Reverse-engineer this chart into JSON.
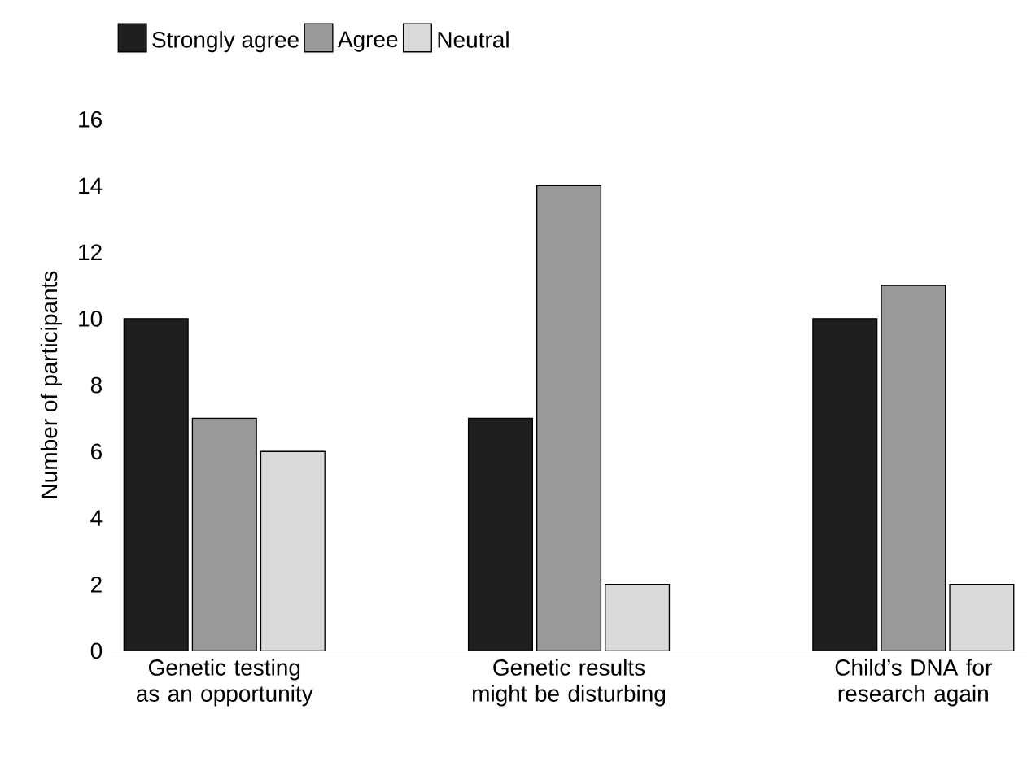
{
  "chart_data": {
    "type": "bar",
    "ylabel": "Number of participants",
    "categories": [
      "Genetic testing as an opportunity",
      "Genetic results might be disturbing",
      "Child’s DNA for research again"
    ],
    "series": [
      {
        "name": "Strongly agree",
        "color": "#1f1f1f",
        "values": [
          10,
          7,
          10
        ]
      },
      {
        "name": "Agree",
        "color": "#999999",
        "values": [
          7,
          14,
          11
        ]
      },
      {
        "name": "Neutral",
        "color": "#d9d9d9",
        "values": [
          6,
          2,
          2
        ]
      }
    ],
    "ylim": [
      0,
      16
    ],
    "yticks": [
      0,
      2,
      4,
      6,
      8,
      10,
      12,
      14,
      16
    ],
    "legend": "top"
  }
}
